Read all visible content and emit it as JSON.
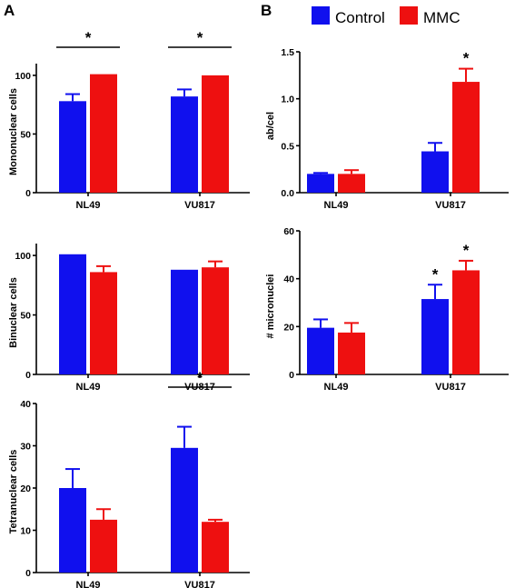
{
  "panel_labels": {
    "a": "A",
    "b": "B"
  },
  "legend": {
    "control_label": "Control",
    "mmc_label": "MMC"
  },
  "colors": {
    "control": "#1010ee",
    "mmc": "#ee1010",
    "axis": "#000000"
  },
  "chart_data": [
    {
      "id": "mononuclear",
      "type": "bar",
      "ylabel": "Mononuclear cells",
      "categories": [
        "NL49",
        "VU817"
      ],
      "yticks": [
        "0",
        "50",
        "100"
      ],
      "ylim": [
        0,
        110
      ],
      "series": [
        {
          "name": "Control",
          "values": [
            78,
            82
          ],
          "errors": [
            6,
            6
          ]
        },
        {
          "name": "MMC",
          "values": [
            101,
            100
          ],
          "errors": [
            0,
            0
          ]
        }
      ],
      "significance": [
        {
          "category": 0,
          "text": "*",
          "bracket": true
        },
        {
          "category": 1,
          "text": "*",
          "bracket": true
        }
      ]
    },
    {
      "id": "binuclear",
      "type": "bar",
      "ylabel": "Binuclear cells",
      "categories": [
        "NL49",
        "VU817"
      ],
      "yticks": [
        "0",
        "50",
        "100"
      ],
      "ylim": [
        0,
        110
      ],
      "series": [
        {
          "name": "Control",
          "values": [
            101,
            88
          ],
          "errors": [
            0,
            0
          ]
        },
        {
          "name": "MMC",
          "values": [
            86,
            90
          ],
          "errors": [
            5,
            5
          ]
        }
      ],
      "significance": []
    },
    {
      "id": "tetranuclear",
      "type": "bar",
      "ylabel": "Tetranuclear cells",
      "categories": [
        "NL49",
        "VU817"
      ],
      "yticks": [
        "0",
        "10",
        "20",
        "30",
        "40"
      ],
      "ylim": [
        0,
        40
      ],
      "series": [
        {
          "name": "Control",
          "values": [
            20,
            29.5
          ],
          "errors": [
            4.5,
            5
          ]
        },
        {
          "name": "MMC",
          "values": [
            12.5,
            12
          ],
          "errors": [
            2.5,
            0.5
          ]
        }
      ],
      "significance": [
        {
          "category": 1,
          "text": "*",
          "bracket": true
        }
      ]
    },
    {
      "id": "ab-cel",
      "type": "bar",
      "ylabel": "ab/cel",
      "categories": [
        "NL49",
        "VU817"
      ],
      "yticks": [
        "0.0",
        "0.5",
        "1.0",
        "1.5"
      ],
      "ylim": [
        0,
        1.5
      ],
      "series": [
        {
          "name": "Control",
          "values": [
            0.2,
            0.44
          ],
          "errors": [
            0.01,
            0.09
          ]
        },
        {
          "name": "MMC",
          "values": [
            0.2,
            1.18
          ],
          "errors": [
            0.04,
            0.14
          ]
        }
      ],
      "significance": [
        {
          "category": 1,
          "series": 1,
          "text": "*",
          "bracket": false
        }
      ]
    },
    {
      "id": "micronuclei",
      "type": "bar",
      "ylabel": "# micronuclei",
      "categories": [
        "NL49",
        "VU817"
      ],
      "yticks": [
        "0",
        "20",
        "40",
        "60"
      ],
      "ylim": [
        0,
        60
      ],
      "series": [
        {
          "name": "Control",
          "values": [
            19.5,
            31.5
          ],
          "errors": [
            3.5,
            6
          ]
        },
        {
          "name": "MMC",
          "values": [
            17.5,
            43.5
          ],
          "errors": [
            4,
            4
          ]
        }
      ],
      "significance": [
        {
          "category": 1,
          "series": 0,
          "text": "*",
          "bracket": false
        },
        {
          "category": 1,
          "series": 1,
          "text": "*",
          "bracket": false
        }
      ]
    }
  ]
}
